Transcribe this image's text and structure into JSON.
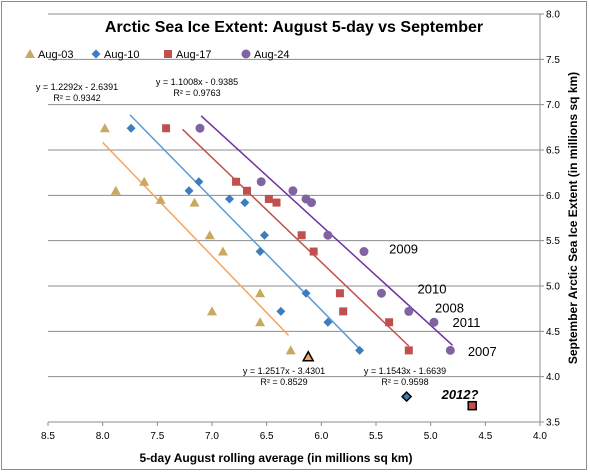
{
  "chart_data": {
    "type": "scatter",
    "title": "Arctic Sea Ice Extent: August 5-day vs September",
    "xlabel": "5-day August rolling average (in millions sq km)",
    "ylabel": "September Arctic Sea Ice Extent (in millions sq km)",
    "x_reversed": true,
    "xlim": [
      4.0,
      8.5
    ],
    "ylim": [
      3.5,
      8.0
    ],
    "y_axis_position": "right",
    "x_ticks": [
      "8.5",
      "8.0",
      "7.5",
      "7.0",
      "6.5",
      "6.0",
      "5.5",
      "5.0",
      "4.5",
      "4.0"
    ],
    "y_ticks": [
      "3.5",
      "4.0",
      "4.5",
      "5.0",
      "5.5",
      "6.0",
      "6.5",
      "7.0",
      "7.5",
      "8.0"
    ],
    "grid": "horizontal",
    "legend_position": "top-left",
    "series": [
      {
        "name": "Aug-03",
        "marker": "triangle",
        "color": "#c9a860",
        "trend_color": "#f4a460",
        "points": [
          [
            7.98,
            6.74
          ],
          [
            7.88,
            6.05
          ],
          [
            7.62,
            6.15
          ],
          [
            7.47,
            5.95
          ],
          [
            7.16,
            5.92
          ],
          [
            7.02,
            5.56
          ],
          [
            6.9,
            5.38
          ],
          [
            7.0,
            4.72
          ],
          [
            6.56,
            4.92
          ],
          [
            6.56,
            4.6
          ],
          [
            6.28,
            4.29
          ]
        ],
        "trend": {
          "slope": 1.2517,
          "intercept": -3.4301,
          "x_range": [
            8.0,
            6.3
          ]
        },
        "equation": "y = 1.2517x - 3.4301",
        "r2": "R² = 0.8529"
      },
      {
        "name": "Aug-10",
        "marker": "diamond",
        "color": "#3b7dbd",
        "trend_color": "#5b9bd5",
        "points": [
          [
            7.74,
            6.74
          ],
          [
            7.21,
            6.05
          ],
          [
            7.12,
            6.15
          ],
          [
            6.84,
            5.96
          ],
          [
            6.7,
            5.92
          ],
          [
            6.52,
            5.56
          ],
          [
            6.56,
            5.38
          ],
          [
            6.37,
            4.72
          ],
          [
            6.14,
            4.92
          ],
          [
            5.94,
            4.6
          ],
          [
            5.65,
            4.29
          ]
        ],
        "trend": {
          "slope": 1.2292,
          "intercept": -2.6391,
          "x_range": [
            7.75,
            5.63
          ]
        },
        "equation": "y = 1.2292x - 2.6391",
        "r2": "R² = 0.9342"
      },
      {
        "name": "Aug-17",
        "marker": "square",
        "color": "#c0504d",
        "trend_color": "#c0504d",
        "points": [
          [
            7.42,
            6.74
          ],
          [
            6.78,
            6.15
          ],
          [
            6.68,
            6.05
          ],
          [
            6.48,
            5.96
          ],
          [
            6.41,
            5.92
          ],
          [
            6.18,
            5.56
          ],
          [
            6.07,
            5.38
          ],
          [
            5.83,
            4.92
          ],
          [
            5.8,
            4.72
          ],
          [
            5.38,
            4.6
          ],
          [
            5.2,
            4.29
          ]
        ],
        "trend": {
          "slope": 1.1543,
          "intercept": -1.6639,
          "x_range": [
            7.27,
            5.2
          ]
        },
        "equation": "y = 1.1543x - 1.6639",
        "r2": "R² = 0.9598"
      },
      {
        "name": "Aug-24",
        "marker": "circle",
        "color": "#8064a2",
        "trend_color": "#7030a0",
        "points": [
          [
            7.11,
            6.74
          ],
          [
            6.55,
            6.15
          ],
          [
            6.26,
            6.05
          ],
          [
            6.14,
            5.96
          ],
          [
            6.09,
            5.92
          ],
          [
            5.94,
            5.56
          ],
          [
            5.61,
            5.38
          ],
          [
            5.45,
            4.92
          ],
          [
            5.2,
            4.72
          ],
          [
            4.97,
            4.6
          ],
          [
            4.82,
            4.29
          ]
        ],
        "trend": {
          "slope": 1.1008,
          "intercept": -0.9385,
          "x_range": [
            7.1,
            4.8
          ]
        },
        "equation": "y = 1.1008x - 0.9385",
        "r2": "R² = 0.9763"
      }
    ],
    "highlight_points": [
      {
        "series": "Aug-03",
        "marker": "triangle",
        "color": "#f4a460",
        "x": 6.12,
        "y": 4.22
      },
      {
        "series": "Aug-10",
        "marker": "diamond",
        "color": "#3b7dbd",
        "x": 5.22,
        "y": 3.78
      },
      {
        "series": "Aug-17",
        "marker": "square",
        "color": "#c0504d",
        "x": 4.62,
        "y": 3.68
      }
    ],
    "annotations": [
      {
        "text": "2009",
        "x": 5.38,
        "y": 5.4
      },
      {
        "text": "2010",
        "x": 5.12,
        "y": 4.96
      },
      {
        "text": "2008",
        "x": 4.96,
        "y": 4.75
      },
      {
        "text": "2011",
        "x": 4.8,
        "y": 4.59
      },
      {
        "text": "2007",
        "x": 4.66,
        "y": 4.27
      },
      {
        "text": "2012?",
        "x": 4.9,
        "y": 3.8,
        "style": "bold-italic"
      }
    ]
  }
}
